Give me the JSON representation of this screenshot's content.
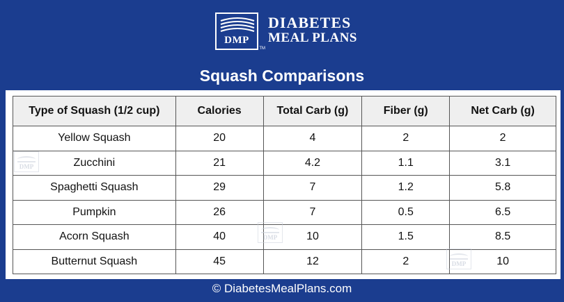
{
  "brand": {
    "mark": "DMP",
    "trademark": "TM",
    "name_line1": "DIABETES",
    "name_line2": "MEAL PLANS"
  },
  "title": "Squash Comparisons",
  "table": {
    "headers": [
      "Type of Squash (1/2 cup)",
      "Calories",
      "Total Carb (g)",
      "Fiber (g)",
      "Net Carb (g)"
    ],
    "rows": [
      [
        "Yellow Squash",
        "20",
        "4",
        "2",
        "2"
      ],
      [
        "Zucchini",
        "21",
        "4.2",
        "1.1",
        "3.1"
      ],
      [
        "Spaghetti Squash",
        "29",
        "7",
        "1.2",
        "5.8"
      ],
      [
        "Pumpkin",
        "26",
        "7",
        "0.5",
        "6.5"
      ],
      [
        "Acorn Squash",
        "40",
        "10",
        "1.5",
        "8.5"
      ],
      [
        "Butternut Squash",
        "45",
        "12",
        "2",
        "10"
      ]
    ]
  },
  "watermark": "DMP",
  "footer": "© DiabetesMealPlans.com",
  "colors": {
    "background": "#1b3d8f",
    "header_fill": "#efefef",
    "text": "#111111"
  }
}
